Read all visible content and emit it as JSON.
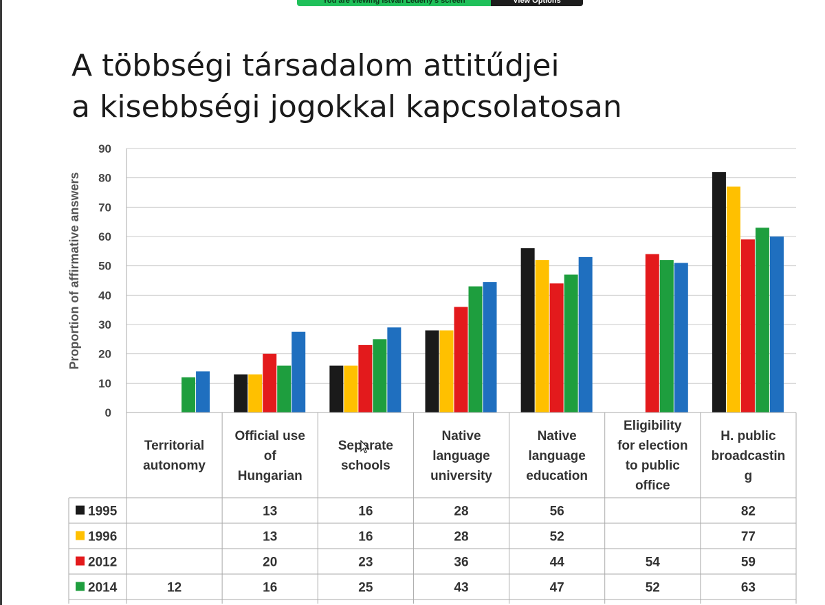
{
  "screen_share": {
    "banner_text": "You are viewing István Léderly's screen",
    "view_options_label": "View Options"
  },
  "slide": {
    "title_line1": "A többségi társadalom attitűdjei",
    "title_line2": "a kisebbségi jogokkal kapcsolatosan"
  },
  "chart_data": {
    "type": "bar",
    "ylabel": "Proportion of affirmative answers",
    "ylim": [
      0,
      90
    ],
    "yticks": [
      0,
      10,
      20,
      30,
      40,
      50,
      60,
      70,
      80,
      90
    ],
    "grid": true,
    "categories": [
      [
        "Territorial",
        "autonomy"
      ],
      [
        "Official use",
        "of",
        "Hungarian"
      ],
      [
        "Separate",
        "schools"
      ],
      [
        "Native",
        "language",
        "university"
      ],
      [
        "Native",
        "language",
        "education"
      ],
      [
        "Eligibility",
        "for election",
        "to public",
        "office"
      ],
      [
        "H. public",
        "broadcastin",
        "g"
      ]
    ],
    "series": [
      {
        "name": "1995",
        "color": "#1a1a1a",
        "values": [
          null,
          13,
          16,
          28,
          56,
          null,
          82
        ]
      },
      {
        "name": "1996",
        "color": "#ffc000",
        "values": [
          null,
          13,
          16,
          28,
          52,
          null,
          77
        ]
      },
      {
        "name": "2012",
        "color": "#e31a1c",
        "values": [
          null,
          20,
          23,
          36,
          44,
          54,
          59
        ]
      },
      {
        "name": "2014",
        "color": "#1e9e3e",
        "values": [
          12,
          16,
          25,
          43,
          47,
          52,
          63
        ]
      },
      {
        "name": "",
        "color": "#1f6fbf",
        "values": [
          14,
          27.5,
          29,
          44.5,
          53,
          51,
          60
        ]
      }
    ],
    "table_rows_shown": 4
  }
}
